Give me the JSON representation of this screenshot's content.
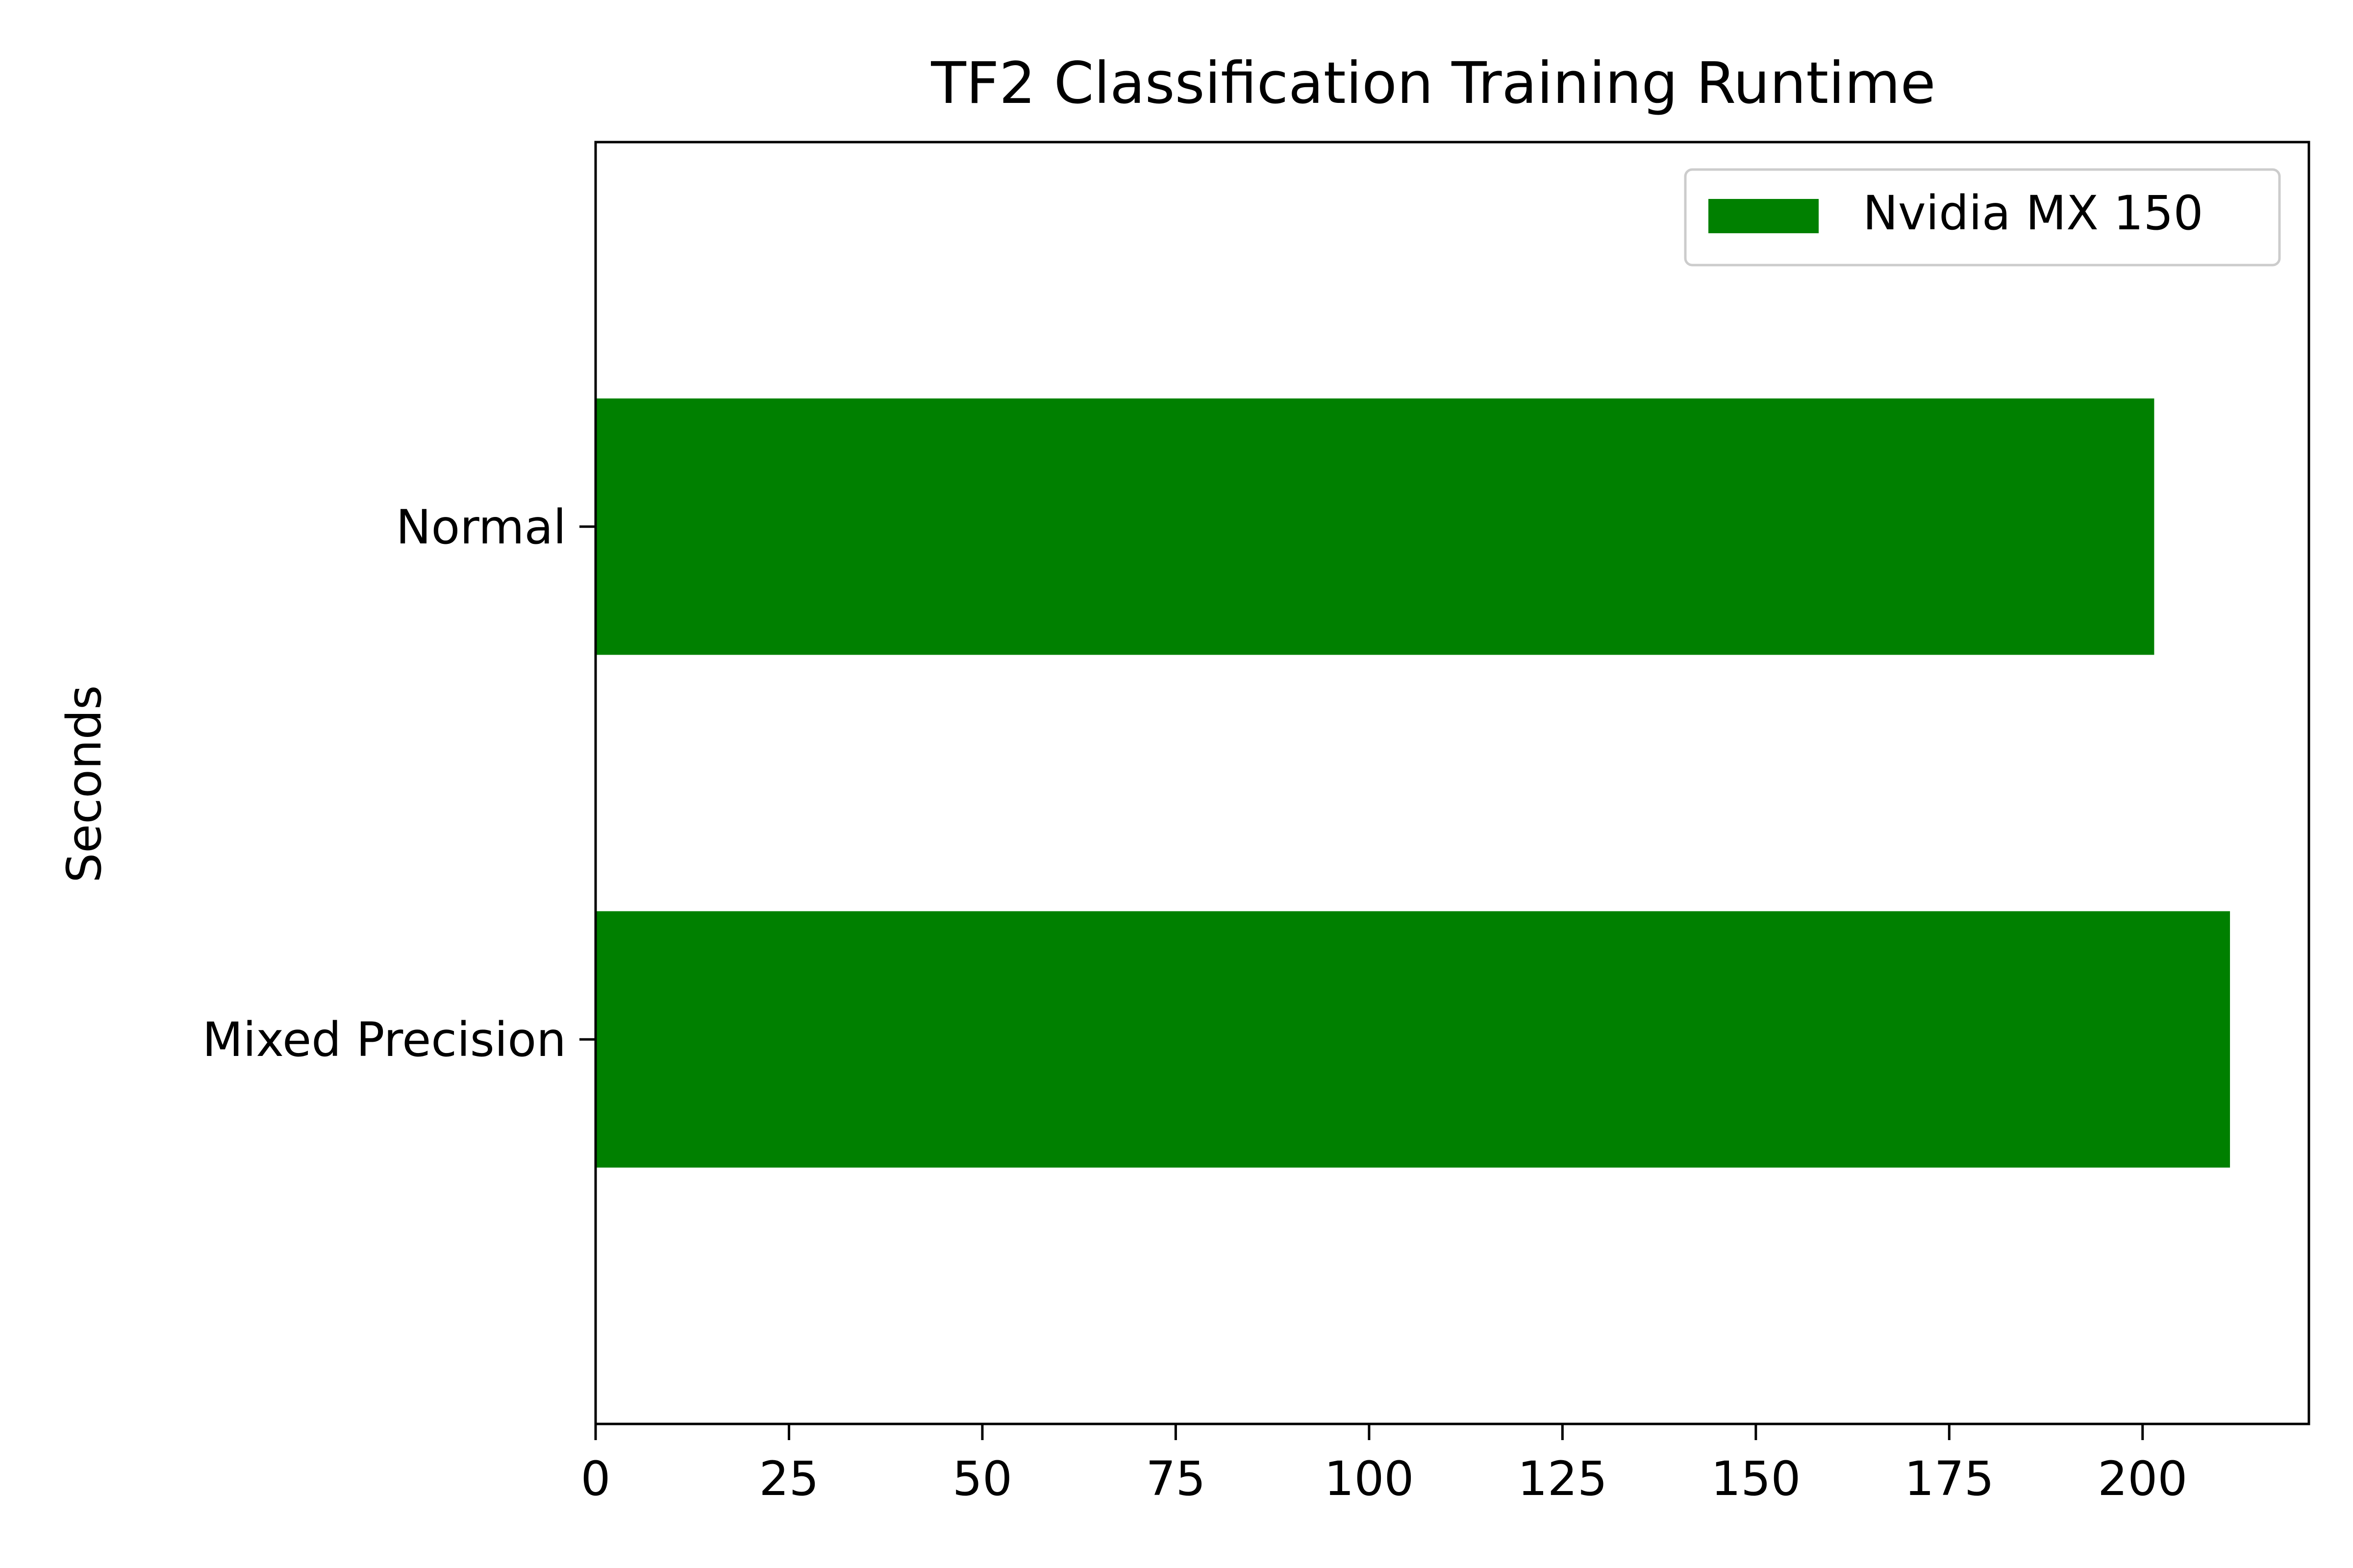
{
  "chart_data": {
    "type": "bar",
    "orientation": "horizontal",
    "title": "TF2 Classification Training Runtime",
    "xlabel": "",
    "ylabel": "Seconds",
    "categories": [
      "Normal",
      "Mixed Precision"
    ],
    "series": [
      {
        "name": "Nvidia MX 150",
        "values": [
          201.5,
          211.3
        ],
        "color": "#008000"
      }
    ],
    "xlim": [
      0,
      221.5
    ],
    "xticks": [
      0,
      25,
      50,
      75,
      100,
      125,
      150,
      175,
      200
    ],
    "grid": false,
    "legend_position": "top-right"
  }
}
